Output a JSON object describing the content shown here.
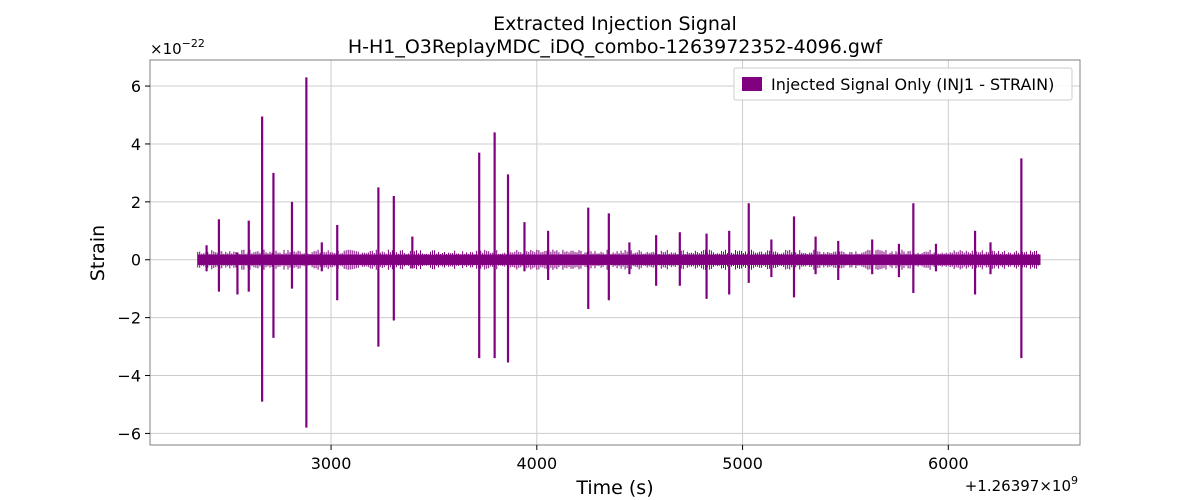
{
  "chart_data": {
    "type": "line",
    "title": "Extracted Injection Signal",
    "subtitle": "H-H1_O3ReplayMDC_iDQ_combo-1263972352-4096.gwf",
    "xlabel": "Time (s)",
    "ylabel": "Strain",
    "x_offset_label": "+1.26397×10",
    "x_offset_exp": "9",
    "y_multiplier_label": "×10",
    "y_multiplier_exp": "−22",
    "xlim": [
      2120,
      6640
    ],
    "ylim": [
      -6.4,
      6.9
    ],
    "x_ticks": [
      3000,
      4000,
      5000,
      6000
    ],
    "x_tick_labels": [
      "3000",
      "4000",
      "5000",
      "6000"
    ],
    "y_ticks": [
      -6,
      -4,
      -2,
      0,
      2,
      4,
      6
    ],
    "y_tick_labels": [
      "−6",
      "−4",
      "−2",
      "0",
      "2",
      "4",
      "6"
    ],
    "grid": true,
    "legend_position": "top-right",
    "series": [
      {
        "name": "Injected Signal Only (INJ1 - STRAIN)",
        "color": "#800080",
        "x_range": [
          2352,
          6448
        ],
        "background_envelope": 0.18,
        "spikes": [
          {
            "x": 2395,
            "ymin": -0.4,
            "ymax": 0.5
          },
          {
            "x": 2455,
            "ymin": -1.1,
            "ymax": 1.4
          },
          {
            "x": 2545,
            "ymin": -1.2,
            "ymax": 0.25
          },
          {
            "x": 2600,
            "ymin": -1.1,
            "ymax": 1.35
          },
          {
            "x": 2665,
            "ymin": -4.9,
            "ymax": 4.95
          },
          {
            "x": 2720,
            "ymin": -2.7,
            "ymax": 3.0
          },
          {
            "x": 2810,
            "ymin": -1.0,
            "ymax": 2.0
          },
          {
            "x": 2880,
            "ymin": -5.8,
            "ymax": 6.3
          },
          {
            "x": 2955,
            "ymin": -0.4,
            "ymax": 0.6
          },
          {
            "x": 3030,
            "ymin": -1.4,
            "ymax": 1.2
          },
          {
            "x": 3230,
            "ymin": -3.0,
            "ymax": 2.5
          },
          {
            "x": 3305,
            "ymin": -2.1,
            "ymax": 2.2
          },
          {
            "x": 3395,
            "ymin": -0.3,
            "ymax": 0.8
          },
          {
            "x": 3720,
            "ymin": -3.4,
            "ymax": 3.7
          },
          {
            "x": 3795,
            "ymin": -3.4,
            "ymax": 4.4
          },
          {
            "x": 3860,
            "ymin": -3.55,
            "ymax": 2.95
          },
          {
            "x": 3940,
            "ymin": -0.4,
            "ymax": 1.3
          },
          {
            "x": 4055,
            "ymin": -0.7,
            "ymax": 1.0
          },
          {
            "x": 4250,
            "ymin": -1.7,
            "ymax": 1.8
          },
          {
            "x": 4350,
            "ymin": -1.4,
            "ymax": 1.6
          },
          {
            "x": 4450,
            "ymin": -0.5,
            "ymax": 0.6
          },
          {
            "x": 4580,
            "ymin": -0.9,
            "ymax": 0.85
          },
          {
            "x": 4695,
            "ymin": -0.9,
            "ymax": 0.95
          },
          {
            "x": 4825,
            "ymin": -1.35,
            "ymax": 0.9
          },
          {
            "x": 4935,
            "ymin": -1.2,
            "ymax": 1.0
          },
          {
            "x": 5030,
            "ymin": -0.8,
            "ymax": 1.95
          },
          {
            "x": 5140,
            "ymin": -0.6,
            "ymax": 0.7
          },
          {
            "x": 5250,
            "ymin": -1.3,
            "ymax": 1.5
          },
          {
            "x": 5355,
            "ymin": -0.5,
            "ymax": 0.8
          },
          {
            "x": 5465,
            "ymin": -0.7,
            "ymax": 0.65
          },
          {
            "x": 5630,
            "ymin": -0.5,
            "ymax": 0.7
          },
          {
            "x": 5760,
            "ymin": -0.6,
            "ymax": 0.55
          },
          {
            "x": 5830,
            "ymin": -1.15,
            "ymax": 1.95
          },
          {
            "x": 5940,
            "ymin": -0.4,
            "ymax": 0.55
          },
          {
            "x": 6130,
            "ymin": -1.2,
            "ymax": 1.0
          },
          {
            "x": 6205,
            "ymin": -0.5,
            "ymax": 0.6
          },
          {
            "x": 6355,
            "ymin": -3.4,
            "ymax": 3.5
          }
        ]
      }
    ]
  }
}
